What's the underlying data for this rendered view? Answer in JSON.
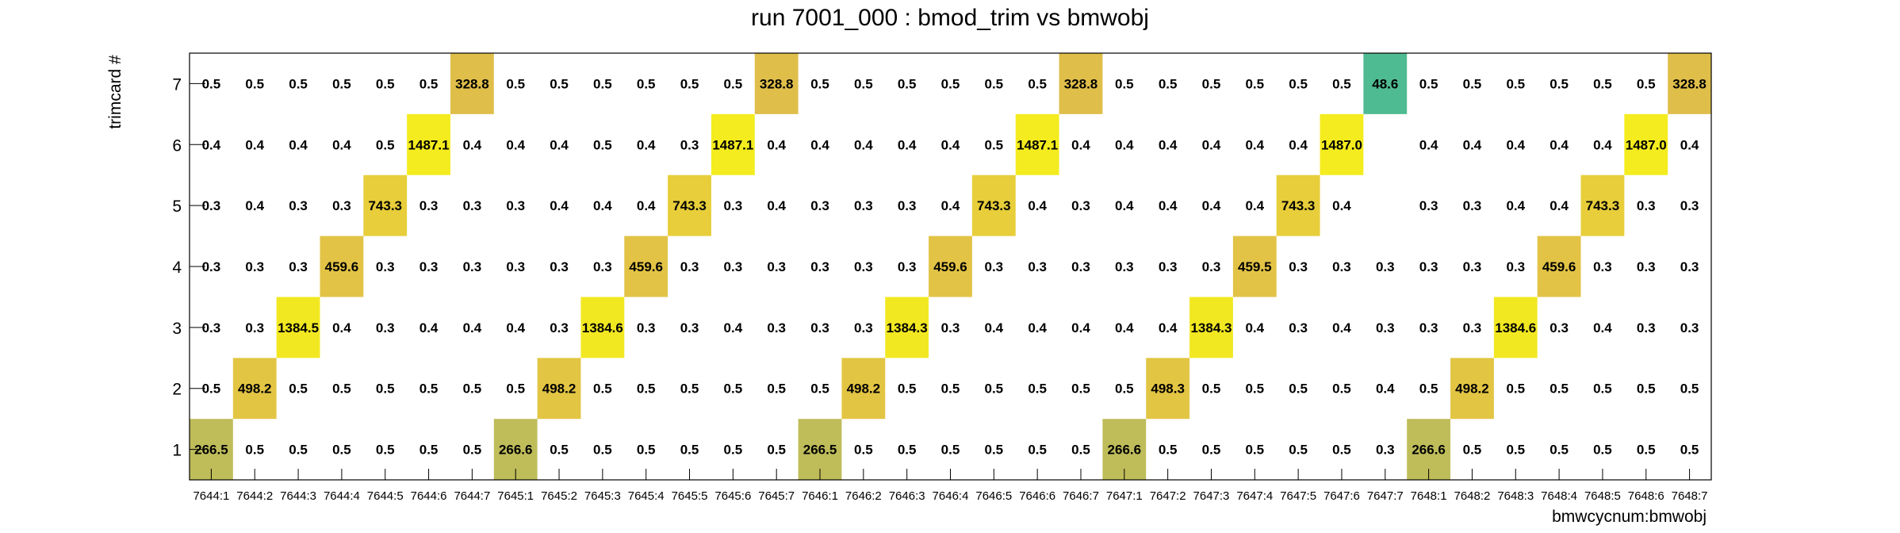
{
  "chart_data": {
    "type": "heatmap",
    "title": "run 7001_000 : bmod_trim vs bmwobj",
    "xlabel": "bmwcycnum:bmwobj",
    "ylabel": "trimcard #",
    "x_categories": [
      "7644:1",
      "7644:2",
      "7644:3",
      "7644:4",
      "7644:5",
      "7644:6",
      "7644:7",
      "7645:1",
      "7645:2",
      "7645:3",
      "7645:4",
      "7645:5",
      "7645:6",
      "7645:7",
      "7646:1",
      "7646:2",
      "7646:3",
      "7646:4",
      "7646:5",
      "7646:6",
      "7646:7",
      "7647:1",
      "7647:2",
      "7647:3",
      "7647:4",
      "7647:5",
      "7647:6",
      "7647:7",
      "7648:1",
      "7648:2",
      "7648:3",
      "7648:4",
      "7648:5",
      "7648:6",
      "7648:7"
    ],
    "y_categories": [
      "1",
      "2",
      "3",
      "4",
      "5",
      "6",
      "7"
    ],
    "values": [
      [
        "266.5",
        "0.5",
        "0.5",
        "0.5",
        "0.5",
        "0.5",
        "0.5",
        "266.6",
        "0.5",
        "0.5",
        "0.5",
        "0.5",
        "0.5",
        "0.5",
        "266.5",
        "0.5",
        "0.5",
        "0.5",
        "0.5",
        "0.5",
        "0.5",
        "266.6",
        "0.5",
        "0.5",
        "0.5",
        "0.5",
        "0.5",
        "0.3",
        "266.6",
        "0.5",
        "0.5",
        "0.5",
        "0.5",
        "0.5",
        "0.5"
      ],
      [
        "0.5",
        "498.2",
        "0.5",
        "0.5",
        "0.5",
        "0.5",
        "0.5",
        "0.5",
        "498.2",
        "0.5",
        "0.5",
        "0.5",
        "0.5",
        "0.5",
        "0.5",
        "498.2",
        "0.5",
        "0.5",
        "0.5",
        "0.5",
        "0.5",
        "0.5",
        "498.3",
        "0.5",
        "0.5",
        "0.5",
        "0.5",
        "0.4",
        "0.5",
        "498.2",
        "0.5",
        "0.5",
        "0.5",
        "0.5",
        "0.5"
      ],
      [
        "0.3",
        "0.3",
        "1384.5",
        "0.4",
        "0.3",
        "0.4",
        "0.4",
        "0.4",
        "0.3",
        "1384.6",
        "0.3",
        "0.3",
        "0.4",
        "0.3",
        "0.3",
        "0.3",
        "1384.3",
        "0.3",
        "0.4",
        "0.4",
        "0.4",
        "0.4",
        "0.4",
        "1384.3",
        "0.4",
        "0.3",
        "0.4",
        "0.3",
        "0.3",
        "0.3",
        "1384.6",
        "0.3",
        "0.4",
        "0.3",
        "0.3"
      ],
      [
        "0.3",
        "0.3",
        "0.3",
        "459.6",
        "0.3",
        "0.3",
        "0.3",
        "0.3",
        "0.3",
        "0.3",
        "459.6",
        "0.3",
        "0.3",
        "0.3",
        "0.3",
        "0.3",
        "0.3",
        "459.6",
        "0.3",
        "0.3",
        "0.3",
        "0.3",
        "0.3",
        "0.3",
        "459.5",
        "0.3",
        "0.3",
        "0.3",
        "0.3",
        "0.3",
        "0.3",
        "459.6",
        "0.3",
        "0.3",
        "0.3"
      ],
      [
        "0.3",
        "0.4",
        "0.3",
        "0.3",
        "743.3",
        "0.3",
        "0.3",
        "0.3",
        "0.4",
        "0.4",
        "0.4",
        "743.3",
        "0.3",
        "0.4",
        "0.3",
        "0.3",
        "0.3",
        "0.4",
        "743.3",
        "0.4",
        "0.3",
        "0.4",
        "0.4",
        "0.4",
        "0.4",
        "743.3",
        "0.4",
        null,
        "0.3",
        "0.3",
        "0.4",
        "0.4",
        "743.3",
        "0.3",
        "0.3"
      ],
      [
        "0.4",
        "0.4",
        "0.4",
        "0.4",
        "0.5",
        "1487.1",
        "0.4",
        "0.4",
        "0.4",
        "0.5",
        "0.4",
        "0.3",
        "1487.1",
        "0.4",
        "0.4",
        "0.4",
        "0.4",
        "0.4",
        "0.5",
        "1487.1",
        "0.4",
        "0.4",
        "0.4",
        "0.4",
        "0.4",
        "0.4",
        "1487.0",
        null,
        "0.4",
        "0.4",
        "0.4",
        "0.4",
        "0.4",
        "1487.0",
        "0.4"
      ],
      [
        "0.5",
        "0.5",
        "0.5",
        "0.5",
        "0.5",
        "0.5",
        "328.8",
        "0.5",
        "0.5",
        "0.5",
        "0.5",
        "0.5",
        "0.5",
        "328.8",
        "0.5",
        "0.5",
        "0.5",
        "0.5",
        "0.5",
        "0.5",
        "328.8",
        "0.5",
        "0.5",
        "0.5",
        "0.5",
        "0.5",
        "0.5",
        "48.6",
        "0.5",
        "0.5",
        "0.5",
        "0.5",
        "0.5",
        "0.5",
        "328.8"
      ]
    ],
    "colors": {
      "low": "#4fbb92",
      "mid": "#e0be4a",
      "high": "#f4ec1e",
      "frame": "#000000"
    }
  }
}
